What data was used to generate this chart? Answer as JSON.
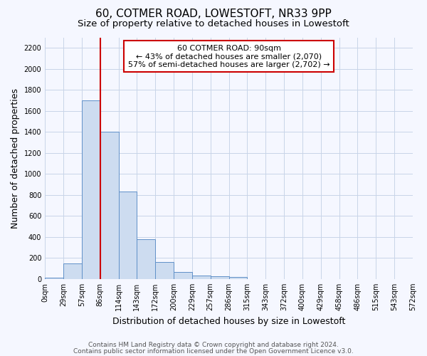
{
  "title": "60, COTMER ROAD, LOWESTOFT, NR33 9PP",
  "subtitle": "Size of property relative to detached houses in Lowestoft",
  "xlabel": "Distribution of detached houses by size in Lowestoft",
  "ylabel": "Number of detached properties",
  "bar_values": [
    15,
    150,
    1700,
    1400,
    830,
    380,
    160,
    65,
    35,
    25,
    20,
    0,
    0,
    0,
    0,
    0,
    0,
    0,
    0,
    0
  ],
  "bar_labels": [
    "0sqm",
    "29sqm",
    "57sqm",
    "86sqm",
    "114sqm",
    "143sqm",
    "172sqm",
    "200sqm",
    "229sqm",
    "257sqm",
    "286sqm",
    "315sqm",
    "343sqm",
    "372sqm",
    "400sqm",
    "429sqm",
    "458sqm",
    "486sqm",
    "515sqm",
    "543sqm",
    "572sqm"
  ],
  "bar_color": "#cddcf0",
  "bar_edge_color": "#6090c8",
  "grid_color": "#c8d4e8",
  "background_color": "#f5f7ff",
  "vline_x": 3,
  "vline_color": "#cc0000",
  "annotation_text": "60 COTMER ROAD: 90sqm\n← 43% of detached houses are smaller (2,070)\n57% of semi-detached houses are larger (2,702) →",
  "annotation_box_color": "#ffffff",
  "annotation_box_edge": "#cc0000",
  "ylim": [
    0,
    2300
  ],
  "yticks": [
    0,
    200,
    400,
    600,
    800,
    1000,
    1200,
    1400,
    1600,
    1800,
    2000,
    2200
  ],
  "footer_line1": "Contains HM Land Registry data © Crown copyright and database right 2024.",
  "footer_line2": "Contains public sector information licensed under the Open Government Licence v3.0.",
  "title_fontsize": 11,
  "subtitle_fontsize": 9.5,
  "axis_label_fontsize": 9,
  "tick_fontsize": 7,
  "annotation_fontsize": 8,
  "footer_fontsize": 6.5
}
